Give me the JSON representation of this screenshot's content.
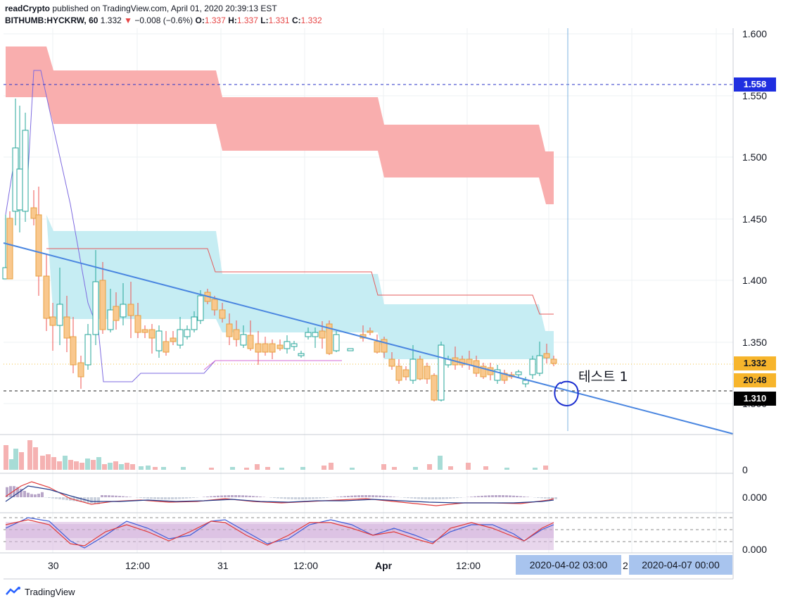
{
  "header": {
    "author": "readCrypto",
    "publish_line": "published on TradingView.com, April 01, 2020 20:39:13 EST",
    "symbol": "BITHUMB:HYCKRW, 60",
    "last": "1.332",
    "change": "−0.008 (−0.6%)",
    "o_label": "O:",
    "o": "1.337",
    "h_label": "H:",
    "h": "1.337",
    "l_label": "L:",
    "l": "1.331",
    "c_label": "C:",
    "c": "1.332"
  },
  "price_axis": {
    "ticks": [
      "1.600",
      "1.550",
      "1.500",
      "1.450",
      "1.400",
      "1.350",
      "1.300"
    ],
    "tags": {
      "hline_price": "1.558",
      "last_price": "1.332",
      "countdown": "20:48",
      "support_price": "1.310"
    }
  },
  "time_axis": {
    "ticks": [
      "30",
      "12:00",
      "31",
      "12:00",
      "Apr",
      "12:00",
      "2"
    ],
    "highlight_a": "2020-04-02   03:00",
    "highlight_b": "2020-04-07   00:00"
  },
  "indicator_labels": {
    "volume_zero": "0",
    "macd_zero": "0.000",
    "stoch_zero": "0.000"
  },
  "annotation": {
    "text": "테스트 1"
  },
  "footer": {
    "brand": "TradingView"
  },
  "colors": {
    "up": "#26a69a",
    "down": "#ef5350",
    "cloud_red": "#f7a8a8",
    "cloud_blue": "#c3ecf2",
    "trend": "#4a86e0"
  }
}
